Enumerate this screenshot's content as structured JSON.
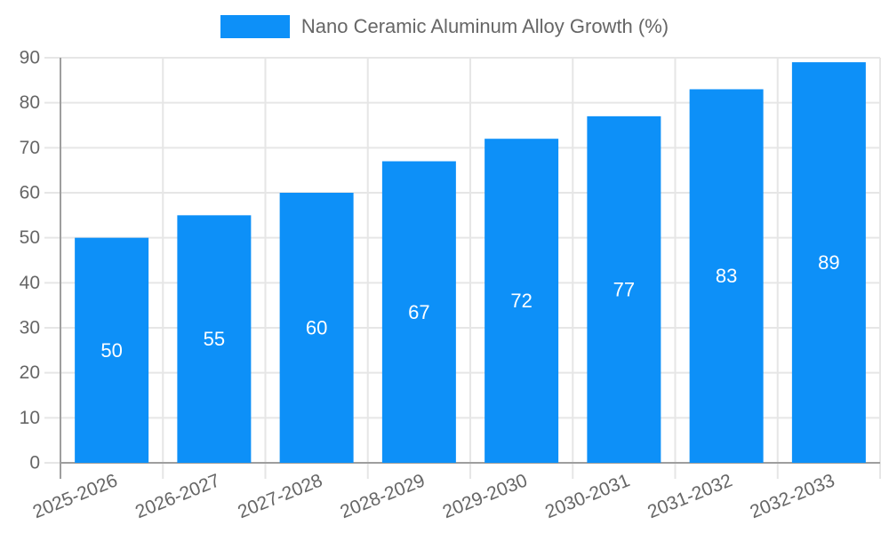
{
  "chart_data": {
    "type": "bar",
    "categories": [
      "2025-2026",
      "2026-2027",
      "2027-2028",
      "2028-2029",
      "2029-2030",
      "2030-2031",
      "2031-2032",
      "2032-2033"
    ],
    "values": [
      50,
      55,
      60,
      67,
      72,
      77,
      83,
      89
    ],
    "legend": [
      "Nano Ceramic Aluminum Alloy Growth (%)"
    ],
    "legend_position": "top",
    "ylim": [
      0,
      90
    ],
    "ytick_step": 10,
    "yticks": [
      0,
      10,
      20,
      30,
      40,
      50,
      60,
      70,
      80,
      90
    ],
    "grid": true,
    "x_tick_rotation_deg": 22,
    "value_label_position": "inside-center",
    "colors": {
      "bar": "#0d90f8",
      "grid": "#e6e6e6",
      "axis_line": "#9e9e9e",
      "tick_text": "#666666",
      "value_text": "#ffffff",
      "legend_text": "#666666"
    }
  }
}
